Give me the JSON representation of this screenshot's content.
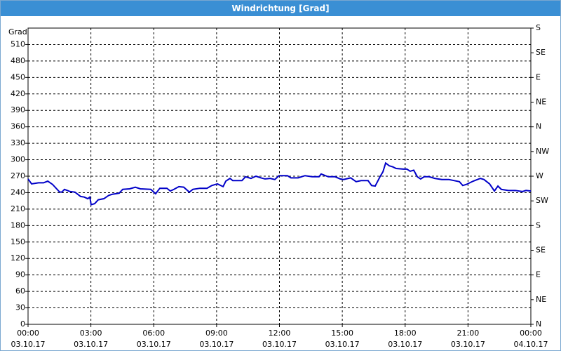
{
  "chart_data": {
    "type": "line",
    "title": "Windrichtung [Grad]",
    "y_label": "Grad",
    "x": [
      0,
      0.17,
      0.5,
      0.74,
      0.94,
      1.17,
      1.51,
      1.61,
      1.74,
      2.01,
      2.24,
      2.51,
      2.68,
      2.85,
      2.95,
      3.01,
      3.18,
      3.35,
      3.62,
      3.85,
      4.02,
      4.35,
      4.52,
      4.85,
      5.12,
      5.36,
      5.86,
      6.09,
      6.29,
      6.63,
      6.79,
      6.96,
      7.2,
      7.43,
      7.7,
      7.87,
      8.2,
      8.54,
      8.77,
      9.04,
      9.31,
      9.44,
      9.64,
      9.77,
      10.21,
      10.38,
      10.64,
      10.88,
      11.11,
      11.31,
      11.55,
      11.78,
      11.98,
      12.38,
      12.55,
      12.89,
      13.22,
      13.56,
      13.89,
      13.99,
      14.33,
      14.66,
      14.9,
      15.06,
      15.4,
      15.66,
      15.9,
      16.23,
      16.4,
      16.57,
      16.8,
      16.94,
      17.07,
      17.24,
      17.41,
      17.57,
      17.91,
      18.08,
      18.24,
      18.41,
      18.58,
      18.74,
      18.91,
      19.15,
      19.41,
      19.75,
      20.08,
      20.59,
      20.75,
      20.92,
      21.25,
      21.59,
      21.76,
      22.03,
      22.26,
      22.43,
      22.59,
      22.93,
      23.26,
      23.6,
      23.77,
      24
    ],
    "series": [
      {
        "name": "Windrichtung",
        "color": "#0000c8",
        "values": [
          265,
          256,
          258,
          258,
          261,
          255,
          241,
          241,
          246,
          242,
          241,
          233,
          232,
          229,
          232,
          218,
          220,
          227,
          229,
          235,
          237,
          239,
          246,
          247,
          250,
          247,
          246,
          238,
          248,
          248,
          243,
          246,
          251,
          250,
          241,
          246,
          248,
          248,
          253,
          256,
          251,
          261,
          266,
          262,
          262,
          269,
          266,
          270,
          267,
          265,
          266,
          264,
          271,
          271,
          267,
          267,
          271,
          269,
          269,
          274,
          269,
          269,
          265,
          264,
          267,
          260,
          262,
          262,
          253,
          252,
          269,
          278,
          294,
          289,
          287,
          284,
          283,
          283,
          279,
          281,
          269,
          265,
          269,
          269,
          266,
          264,
          264,
          260,
          253,
          255,
          261,
          266,
          264,
          256,
          243,
          252,
          246,
          244,
          244,
          242,
          244,
          243
        ]
      }
    ],
    "xlim": [
      0,
      24
    ],
    "xticks": [
      {
        "value": 0,
        "label": "00:00",
        "date": "03.10.17"
      },
      {
        "value": 3,
        "label": "03:00",
        "date": "03.10.17"
      },
      {
        "value": 6,
        "label": "06:00",
        "date": "03.10.17"
      },
      {
        "value": 9,
        "label": "09:00",
        "date": "03.10.17"
      },
      {
        "value": 12,
        "label": "12:00",
        "date": "03.10.17"
      },
      {
        "value": 15,
        "label": "15:00",
        "date": "03.10.17"
      },
      {
        "value": 18,
        "label": "18:00",
        "date": "03.10.17"
      },
      {
        "value": 21,
        "label": "21:00",
        "date": "03.10.17"
      },
      {
        "value": 24,
        "label": "00:00",
        "date": "04.10.17"
      }
    ],
    "ylim": [
      0,
      540
    ],
    "yticks": [
      0,
      30,
      60,
      90,
      120,
      150,
      180,
      210,
      240,
      270,
      300,
      330,
      360,
      390,
      420,
      450,
      480,
      510
    ],
    "y2lim": [
      0,
      540
    ],
    "y2ticks": [
      {
        "value": 0,
        "label": "N"
      },
      {
        "value": 45,
        "label": "NE"
      },
      {
        "value": 90,
        "label": "E"
      },
      {
        "value": 135,
        "label": "SE"
      },
      {
        "value": 180,
        "label": "S"
      },
      {
        "value": 225,
        "label": "SW"
      },
      {
        "value": 270,
        "label": "W"
      },
      {
        "value": 315,
        "label": "NW"
      },
      {
        "value": 360,
        "label": "N"
      },
      {
        "value": 405,
        "label": "NE"
      },
      {
        "value": 450,
        "label": "E"
      },
      {
        "value": 495,
        "label": "SE"
      },
      {
        "value": 540,
        "label": "S"
      }
    ],
    "grid": true
  }
}
